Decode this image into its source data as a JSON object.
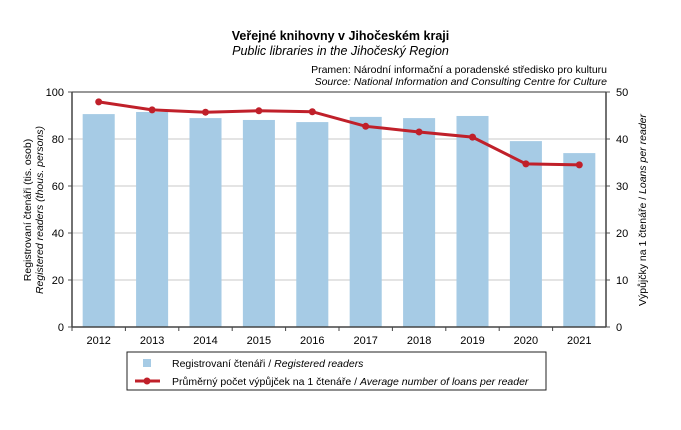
{
  "chart_data": {
    "type": "bar+line",
    "title": "Veřejné knihovny v Jihočeském kraji",
    "subtitle": "Public libraries in the Jihočeský Region",
    "source_cz": "Pramen: Národní informační a poradenské středisko pro kulturu",
    "source_en": "Source: National Information and Consulting Centre for Culture",
    "categories": [
      "2012",
      "2013",
      "2014",
      "2015",
      "2016",
      "2017",
      "2018",
      "2019",
      "2020",
      "2021"
    ],
    "series": [
      {
        "name_cz": "Registrovaní čtenáři",
        "name_en": "Registered readers",
        "axis": "left",
        "type": "bar",
        "color": "#a6cbe5",
        "values": [
          90.6,
          91.5,
          88.9,
          88.1,
          87.2,
          89.4,
          88.9,
          89.8,
          79.1,
          74.0
        ]
      },
      {
        "name_cz": "Průměrný počet výpůjček na 1 čtenáře",
        "name_en": "Average number of loans per reader",
        "axis": "right",
        "type": "line",
        "color": "#c0202a",
        "values": [
          47.9,
          46.2,
          45.7,
          46.0,
          45.8,
          42.7,
          41.5,
          40.4,
          34.7,
          34.5
        ]
      }
    ],
    "ylabel_left_cz": "Registrovaní čtenáři (tis. osob)",
    "ylabel_left_en": "Registered readers (thous. persons)",
    "ylabel_right_cz": "Výpůjčky na 1 čtenáře",
    "ylabel_right_en": "Loans per reader",
    "ylim_left": [
      0,
      100
    ],
    "yticks_left": [
      "0",
      "20",
      "40",
      "60",
      "80",
      "100"
    ],
    "ylim_right": [
      0,
      50
    ],
    "yticks_right": [
      "0",
      "10",
      "20",
      "30",
      "40",
      "50"
    ],
    "legend_sep": " / ",
    "legend_placement": "bottom",
    "grid": true
  }
}
